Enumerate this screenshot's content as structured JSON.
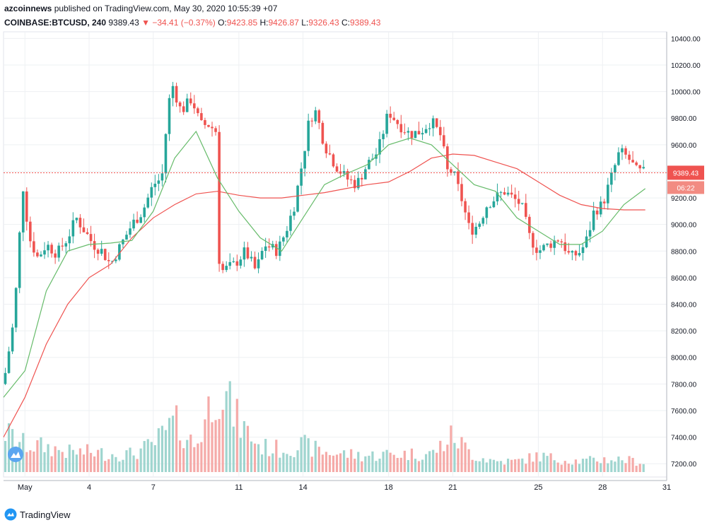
{
  "header": {
    "publisher": "azcoinnews",
    "published_text": "published on TradingView.com, May 30, 2020 10:55:39 +07",
    "symbol": "COINBASE:BTCUSD, 240",
    "last": "9389.43",
    "change": "−34.41 (−0.37%)",
    "o_label": "O:",
    "o_value": "9423.85",
    "h_label": "H:",
    "h_value": "9426.87",
    "l_label": "L:",
    "l_value": "9326.43",
    "c_label": "C:",
    "c_value": "9389.43"
  },
  "footer": {
    "brand": "TradingView"
  },
  "colors": {
    "up": "#26a69a",
    "down": "#ef5350",
    "ma_short": "#66bb6a",
    "ma_long": "#ef5350",
    "price_line": "#ef5350",
    "grid": "#eef0f3"
  },
  "chart_data": {
    "type": "candlestick",
    "symbol": "COINBASE:BTCUSD",
    "interval": "240",
    "price_axis": {
      "side": "right",
      "range": [
        7100,
        10450
      ],
      "ticks": [
        7200,
        7400,
        7600,
        7800,
        8000,
        8200,
        8400,
        8600,
        8800,
        9000,
        9200,
        9400,
        9600,
        9800,
        10000,
        10200,
        10400
      ],
      "tick_labels": [
        "7200.00",
        "7400.00",
        "7600.00",
        "7800.00",
        "8000.00",
        "8200.00",
        "8400.00",
        "8600.00",
        "8800.00",
        "9000.00",
        "9200.00",
        "9400.00",
        "9600.00",
        "9800.00",
        "10000.00",
        "10200.00",
        "10400.00"
      ]
    },
    "time_axis": {
      "range": [
        0,
        31
      ],
      "ticks": [
        {
          "x": 1,
          "label": "May"
        },
        {
          "x": 4,
          "label": "4"
        },
        {
          "x": 7,
          "label": "7"
        },
        {
          "x": 11,
          "label": "11"
        },
        {
          "x": 14,
          "label": "14"
        },
        {
          "x": 18,
          "label": "18"
        },
        {
          "x": 21,
          "label": "21"
        },
        {
          "x": 25,
          "label": "25"
        },
        {
          "x": 28,
          "label": "28"
        },
        {
          "x": 31,
          "label": "31"
        }
      ]
    },
    "last_price": {
      "value": 9389.43,
      "label": "9389.43",
      "countdown": "06:22"
    },
    "grid": true,
    "price_path": [
      [
        0,
        7800
      ],
      [
        0.5,
        8300
      ],
      [
        0.9,
        9300
      ],
      [
        1.2,
        8900
      ],
      [
        1.6,
        8750
      ],
      [
        2.0,
        8850
      ],
      [
        2.5,
        8780
      ],
      [
        3.0,
        8900
      ],
      [
        3.4,
        9050
      ],
      [
        3.8,
        8950
      ],
      [
        4.2,
        8850
      ],
      [
        4.6,
        8800
      ],
      [
        5.0,
        8700
      ],
      [
        5.5,
        8850
      ],
      [
        6.0,
        9000
      ],
      [
        6.5,
        9100
      ],
      [
        7.0,
        9300
      ],
      [
        7.4,
        9350
      ],
      [
        7.7,
        9900
      ],
      [
        7.9,
        10050
      ],
      [
        8.3,
        9850
      ],
      [
        8.8,
        9950
      ],
      [
        9.2,
        9750
      ],
      [
        9.6,
        9750
      ],
      [
        9.95,
        9700
      ],
      [
        10.0,
        8800
      ],
      [
        10.2,
        8650
      ],
      [
        10.8,
        8700
      ],
      [
        11.3,
        8800
      ],
      [
        11.8,
        8650
      ],
      [
        12.2,
        8850
      ],
      [
        12.8,
        8800
      ],
      [
        13.2,
        8950
      ],
      [
        13.6,
        9150
      ],
      [
        14.0,
        9500
      ],
      [
        14.3,
        9800
      ],
      [
        14.6,
        9850
      ],
      [
        15.0,
        9600
      ],
      [
        15.5,
        9450
      ],
      [
        16.0,
        9350
      ],
      [
        16.5,
        9300
      ],
      [
        17.0,
        9450
      ],
      [
        17.5,
        9550
      ],
      [
        18.0,
        9850
      ],
      [
        18.5,
        9750
      ],
      [
        19.0,
        9680
      ],
      [
        19.5,
        9700
      ],
      [
        20.0,
        9780
      ],
      [
        20.5,
        9650
      ],
      [
        20.7,
        9400
      ],
      [
        21.0,
        9400
      ],
      [
        21.4,
        9200
      ],
      [
        21.8,
        8950
      ],
      [
        22.2,
        9000
      ],
      [
        22.6,
        9150
      ],
      [
        23.0,
        9200
      ],
      [
        23.4,
        9250
      ],
      [
        23.8,
        9200
      ],
      [
        24.2,
        9150
      ],
      [
        24.6,
        8900
      ],
      [
        25.0,
        8800
      ],
      [
        25.5,
        8850
      ],
      [
        26.0,
        8900
      ],
      [
        26.5,
        8750
      ],
      [
        27.0,
        8800
      ],
      [
        27.3,
        8900
      ],
      [
        27.6,
        9100
      ],
      [
        28.0,
        9150
      ],
      [
        28.4,
        9350
      ],
      [
        28.8,
        9550
      ],
      [
        29.2,
        9500
      ],
      [
        29.6,
        9400
      ],
      [
        30.0,
        9390
      ]
    ],
    "volume_profile": [
      [
        0,
        0.45
      ],
      [
        1,
        0.3
      ],
      [
        2,
        0.28
      ],
      [
        3,
        0.22
      ],
      [
        4,
        0.22
      ],
      [
        5,
        0.2
      ],
      [
        6,
        0.2
      ],
      [
        7,
        0.3
      ],
      [
        8,
        0.55
      ],
      [
        9,
        0.28
      ],
      [
        10,
        1.0
      ],
      [
        11,
        0.55
      ],
      [
        12,
        0.28
      ],
      [
        13,
        0.25
      ],
      [
        14,
        0.3
      ],
      [
        15,
        0.22
      ],
      [
        16,
        0.2
      ],
      [
        17,
        0.18
      ],
      [
        18,
        0.2
      ],
      [
        19,
        0.2
      ],
      [
        20,
        0.2
      ],
      [
        21,
        0.4
      ],
      [
        22,
        0.18
      ],
      [
        23,
        0.12
      ],
      [
        24,
        0.12
      ],
      [
        25,
        0.18
      ],
      [
        26,
        0.14
      ],
      [
        27,
        0.12
      ],
      [
        28,
        0.14
      ],
      [
        29,
        0.14
      ],
      [
        30,
        0.1
      ]
    ],
    "ma_short": [
      [
        0,
        7700
      ],
      [
        1,
        7900
      ],
      [
        2,
        8500
      ],
      [
        3,
        8800
      ],
      [
        4,
        8850
      ],
      [
        5,
        8860
      ],
      [
        6,
        8880
      ],
      [
        7,
        9100
      ],
      [
        8,
        9500
      ],
      [
        9,
        9700
      ],
      [
        10,
        9350
      ],
      [
        11,
        9100
      ],
      [
        12,
        8900
      ],
      [
        13,
        8800
      ],
      [
        14,
        9050
      ],
      [
        15,
        9300
      ],
      [
        16,
        9380
      ],
      [
        17,
        9450
      ],
      [
        18,
        9600
      ],
      [
        19,
        9650
      ],
      [
        20,
        9600
      ],
      [
        21,
        9450
      ],
      [
        22,
        9300
      ],
      [
        23,
        9250
      ],
      [
        24,
        9050
      ],
      [
        25,
        8950
      ],
      [
        26,
        8850
      ],
      [
        27,
        8850
      ],
      [
        28,
        8950
      ],
      [
        29,
        9150
      ],
      [
        30,
        9270
      ]
    ],
    "ma_long": [
      [
        0,
        7400
      ],
      [
        1,
        7700
      ],
      [
        2,
        8100
      ],
      [
        3,
        8400
      ],
      [
        4,
        8600
      ],
      [
        5,
        8700
      ],
      [
        6,
        8900
      ],
      [
        7,
        9050
      ],
      [
        8,
        9150
      ],
      [
        9,
        9230
      ],
      [
        10,
        9250
      ],
      [
        11,
        9220
      ],
      [
        12,
        9200
      ],
      [
        13,
        9200
      ],
      [
        14,
        9220
      ],
      [
        15,
        9240
      ],
      [
        16,
        9270
      ],
      [
        17,
        9300
      ],
      [
        18,
        9320
      ],
      [
        19,
        9400
      ],
      [
        20,
        9500
      ],
      [
        21,
        9530
      ],
      [
        22,
        9520
      ],
      [
        23,
        9470
      ],
      [
        24,
        9420
      ],
      [
        25,
        9320
      ],
      [
        26,
        9220
      ],
      [
        27,
        9150
      ],
      [
        28,
        9120
      ],
      [
        29,
        9110
      ],
      [
        30,
        9110
      ]
    ]
  }
}
